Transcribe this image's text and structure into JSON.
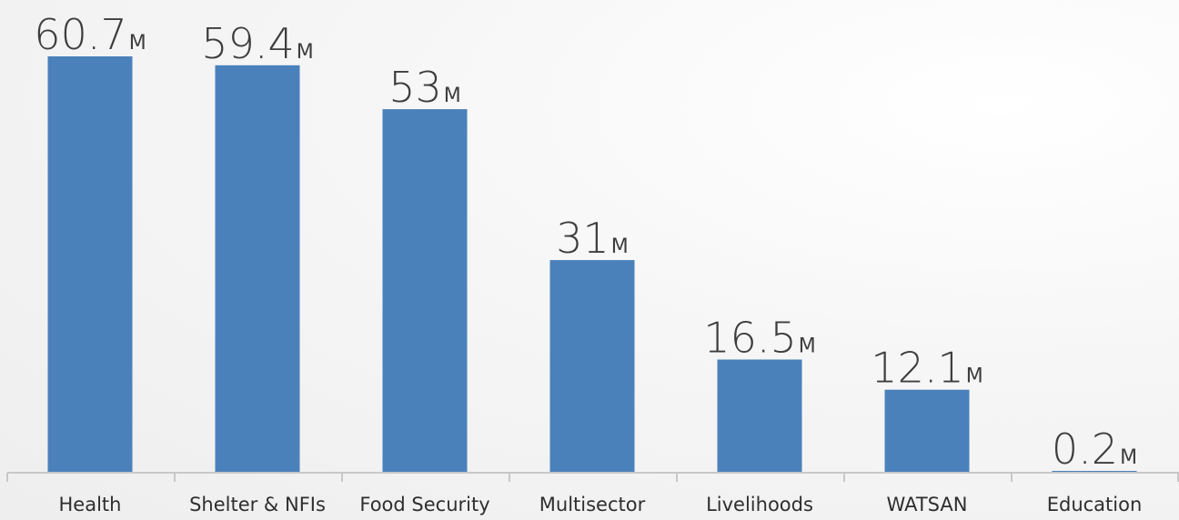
{
  "chart_data": {
    "type": "bar",
    "categories": [
      "Health",
      "Shelter & NFIs",
      "Food Security",
      "Multisector",
      "Livelihoods",
      "WATSAN",
      "Education"
    ],
    "values": [
      60.7,
      59.4,
      53,
      31,
      16.5,
      12.1,
      0.2
    ],
    "value_labels": [
      "60.7",
      "59.4",
      "53",
      "31",
      "16.5",
      "12.1",
      "0.2"
    ],
    "unit": "M",
    "title": "",
    "xlabel": "",
    "ylabel": "",
    "ylim": [
      0,
      60.7
    ],
    "grid": false,
    "legend": "none",
    "colors": {
      "bar": "#4a81bb",
      "axis": "#c8c8c8",
      "text": "#3d3d3d"
    }
  }
}
